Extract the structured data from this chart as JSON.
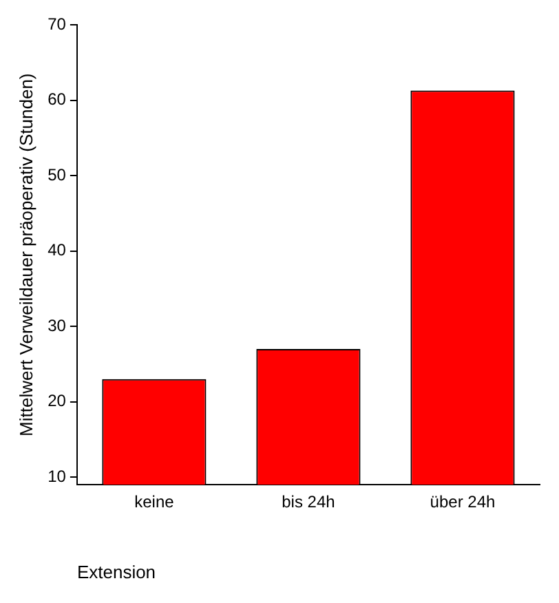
{
  "chart_data": {
    "type": "bar",
    "xlabel": "Extension",
    "ylabel": "Mittelwert Verweildauer präoperativ (Stunden)",
    "categories": [
      "keine",
      "bis 24h",
      "über 24h"
    ],
    "values": [
      23,
      27,
      61.3
    ],
    "color": "#ff0000",
    "ylim": [
      9,
      70
    ],
    "yticks": [
      10,
      20,
      30,
      40,
      50,
      60,
      70
    ],
    "grid": false,
    "legend": false
  }
}
